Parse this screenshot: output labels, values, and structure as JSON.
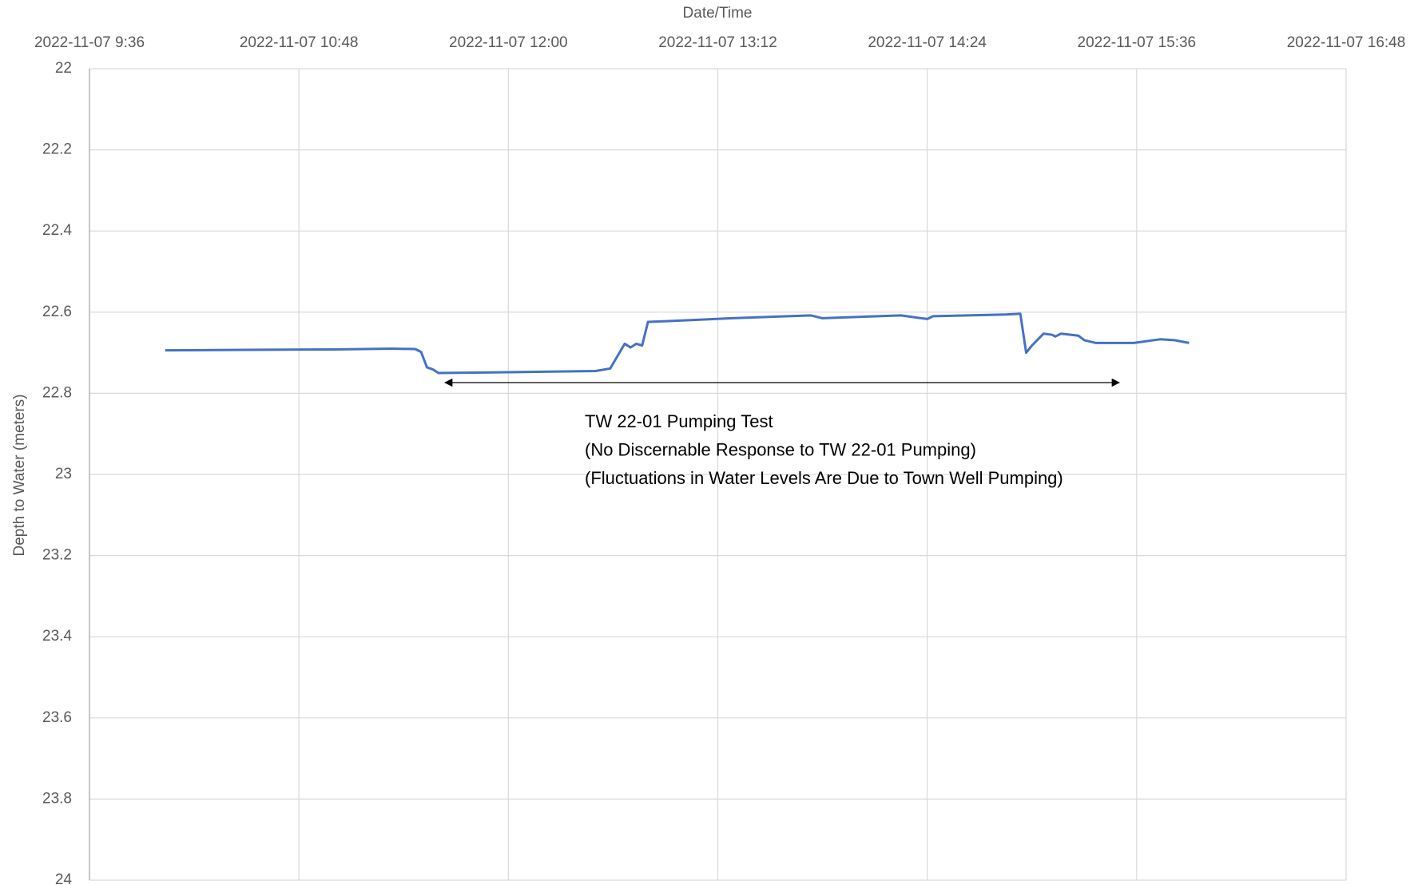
{
  "chart_data": {
    "type": "line",
    "x_label": "Date/Time",
    "y_label": "Depth to Water (meters)",
    "x": [
      "2022-11-07 10:02",
      "2022-11-07 10:30",
      "2022-11-07 11:00",
      "2022-11-07 11:20",
      "2022-11-07 11:28",
      "2022-11-07 11:30",
      "2022-11-07 11:32",
      "2022-11-07 11:34",
      "2022-11-07 11:36",
      "2022-11-07 12:00",
      "2022-11-07 12:30",
      "2022-11-07 12:35",
      "2022-11-07 12:40",
      "2022-11-07 12:42",
      "2022-11-07 12:44",
      "2022-11-07 12:46",
      "2022-11-07 12:48",
      "2022-11-07 12:55",
      "2022-11-07 13:17",
      "2022-11-07 13:44",
      "2022-11-07 13:48",
      "2022-11-07 14:07",
      "2022-11-07 14:15",
      "2022-11-07 14:24",
      "2022-11-07 14:26",
      "2022-11-07 14:38",
      "2022-11-07 14:51",
      "2022-11-07 14:56",
      "2022-11-07 14:58",
      "2022-11-07 15:00",
      "2022-11-07 15:04",
      "2022-11-07 15:07",
      "2022-11-07 15:08",
      "2022-11-07 15:10",
      "2022-11-07 15:16",
      "2022-11-07 15:18",
      "2022-11-07 15:22",
      "2022-11-07 15:35",
      "2022-11-07 15:44",
      "2022-11-07 15:49",
      "2022-11-07 15:54"
    ],
    "series": [
      {
        "color": "#4472c4",
        "values": [
          22.694,
          22.693,
          22.692,
          22.69,
          22.691,
          22.698,
          22.736,
          22.741,
          22.75,
          22.748,
          22.745,
          22.739,
          22.678,
          22.687,
          22.678,
          22.682,
          22.624,
          22.622,
          22.615,
          22.608,
          22.615,
          22.61,
          22.608,
          22.617,
          22.61,
          22.608,
          22.606,
          22.604,
          22.7,
          22.682,
          22.653,
          22.656,
          22.66,
          22.653,
          22.658,
          22.669,
          22.676,
          22.676,
          22.667,
          22.669,
          22.676
        ]
      }
    ],
    "xlim": [
      "2022-11-07 9:36",
      "2022-11-07 16:48"
    ],
    "xticks": [
      "2022-11-07 9:36",
      "2022-11-07 10:48",
      "2022-11-07 12:00",
      "2022-11-07 13:12",
      "2022-11-07 14:24",
      "2022-11-07 15:36",
      "2022-11-07 16:48"
    ],
    "ylim": [
      22,
      24
    ],
    "yticks": [
      22,
      22.2,
      22.4,
      22.6,
      22.8,
      23,
      23.2,
      23.4,
      23.6,
      23.8,
      24
    ],
    "y_inverted": true,
    "grid": true,
    "annotation": [
      "TW 22-01 Pumping Test",
      "(No Discernable Response to TW 22-01 Pumping)",
      "(Fluctuations in Water Levels Are Due to Town Well Pumping)"
    ]
  }
}
